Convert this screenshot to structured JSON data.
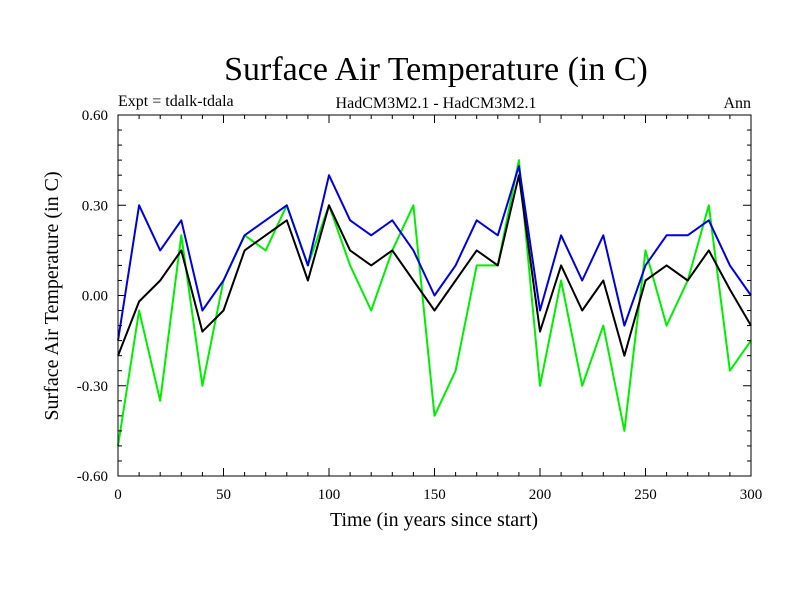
{
  "chart_data": {
    "type": "line",
    "title": "Surface Air Temperature (in C)",
    "subtitle_left": "Expt = tdalk-tdala",
    "subtitle_center": "HadCM3M2.1 - HadCM3M2.1",
    "subtitle_right": "Ann",
    "xlabel": "Time (in years since start)",
    "ylabel": "Surface Air Temperature (in C)",
    "xlim": [
      0,
      300
    ],
    "ylim": [
      -0.6,
      0.6
    ],
    "x_ticks": [
      0,
      50,
      100,
      150,
      200,
      250,
      300
    ],
    "x_tick_labels": [
      "0",
      "50",
      "100",
      "150",
      "200",
      "250",
      "300"
    ],
    "y_ticks": [
      -0.6,
      -0.3,
      0.0,
      0.3,
      0.6
    ],
    "y_tick_labels": [
      "-0.60",
      "-0.30",
      "0.00",
      "0.30",
      "0.60"
    ],
    "x": [
      0,
      10,
      20,
      30,
      40,
      50,
      60,
      70,
      80,
      90,
      100,
      110,
      120,
      130,
      140,
      150,
      160,
      170,
      180,
      190,
      200,
      210,
      220,
      230,
      240,
      250,
      260,
      270,
      280,
      290,
      300
    ],
    "series": [
      {
        "name": "green",
        "color": "#00ee00",
        "values": [
          -0.5,
          -0.05,
          -0.35,
          0.2,
          -0.3,
          0.05,
          0.2,
          0.15,
          0.3,
          0.1,
          0.3,
          0.1,
          -0.05,
          0.15,
          0.3,
          -0.4,
          -0.25,
          0.1,
          0.1,
          0.45,
          -0.3,
          0.05,
          -0.3,
          -0.1,
          -0.45,
          0.15,
          -0.1,
          0.05,
          0.3,
          -0.25,
          -0.15
        ]
      },
      {
        "name": "black",
        "color": "#000000",
        "values": [
          -0.2,
          -0.02,
          0.05,
          0.15,
          -0.12,
          -0.05,
          0.15,
          0.2,
          0.25,
          0.05,
          0.3,
          0.15,
          0.1,
          0.15,
          0.05,
          -0.05,
          0.05,
          0.15,
          0.1,
          0.4,
          -0.12,
          0.1,
          -0.05,
          0.05,
          -0.2,
          0.05,
          0.1,
          0.05,
          0.15,
          0.02,
          -0.1
        ]
      },
      {
        "name": "blue",
        "color": "#0000dd",
        "values": [
          -0.15,
          0.3,
          0.15,
          0.25,
          -0.05,
          0.05,
          0.2,
          0.25,
          0.3,
          0.1,
          0.4,
          0.25,
          0.2,
          0.25,
          0.15,
          0.0,
          0.1,
          0.25,
          0.2,
          0.43,
          -0.05,
          0.2,
          0.05,
          0.2,
          -0.1,
          0.1,
          0.2,
          0.2,
          0.25,
          0.1,
          0.0
        ]
      }
    ]
  }
}
